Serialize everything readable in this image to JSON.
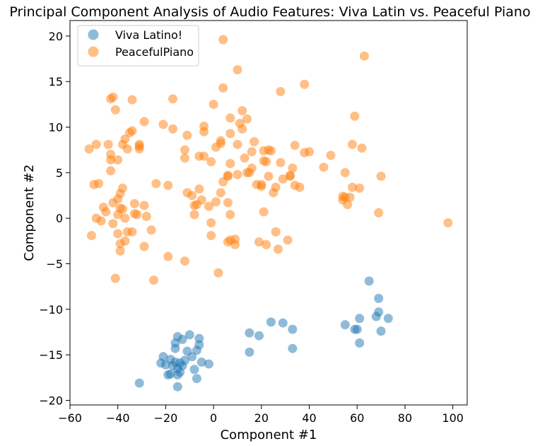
{
  "chart_data": {
    "type": "scatter",
    "title": "Principal Component Analysis of Audio Features: Viva Latin vs. Peaceful Piano",
    "xlabel": "Component #1",
    "ylabel": "Component #2",
    "xlim": [
      -60,
      106
    ],
    "ylim": [
      -20.5,
      21.7
    ],
    "xticks": [
      -60,
      -40,
      -20,
      0,
      20,
      40,
      60,
      80,
      100
    ],
    "yticks": [
      -20,
      -15,
      -10,
      -5,
      0,
      5,
      10,
      15,
      20
    ],
    "grid": false,
    "legend_position": "top-left",
    "series": [
      {
        "name": "Viva Latino!",
        "color": "#1f77b4",
        "points": [
          [
            -31,
            -18.1
          ],
          [
            -22,
            -15.9
          ],
          [
            -21,
            -15.2
          ],
          [
            -20,
            -16.1
          ],
          [
            -19,
            -17.2
          ],
          [
            -18,
            -17.1
          ],
          [
            -18,
            -15.5
          ],
          [
            -17,
            -16.2
          ],
          [
            -16,
            -15.8
          ],
          [
            -16,
            -14.3
          ],
          [
            -16,
            -13.7
          ],
          [
            -15,
            -13.0
          ],
          [
            -15,
            -16.5
          ],
          [
            -15,
            -17.2
          ],
          [
            -14,
            -16.9
          ],
          [
            -14,
            -15.9
          ],
          [
            -13,
            -16.2
          ],
          [
            -13,
            -13.3
          ],
          [
            -12,
            -15.6
          ],
          [
            -11,
            -14.6
          ],
          [
            -10,
            -12.8
          ],
          [
            -9,
            -15.2
          ],
          [
            -8,
            -16.6
          ],
          [
            -7,
            -17.6
          ],
          [
            -7,
            -14.5
          ],
          [
            -6,
            -13.9
          ],
          [
            -6,
            -13.2
          ],
          [
            -5,
            -15.8
          ],
          [
            -2,
            -16.0
          ],
          [
            -15,
            -18.5
          ],
          [
            15,
            -14.7
          ],
          [
            15,
            -12.6
          ],
          [
            19,
            -12.9
          ],
          [
            24,
            -11.4
          ],
          [
            29,
            -11.5
          ],
          [
            33,
            -12.2
          ],
          [
            33,
            -14.3
          ],
          [
            55,
            -11.7
          ],
          [
            59,
            -12.2
          ],
          [
            60,
            -12.2
          ],
          [
            61,
            -11.0
          ],
          [
            61,
            -13.7
          ],
          [
            65,
            -6.9
          ],
          [
            68,
            -10.8
          ],
          [
            69,
            -8.8
          ],
          [
            69,
            -10.3
          ],
          [
            70,
            -12.4
          ],
          [
            73,
            -11.0
          ]
        ]
      },
      {
        "name": "PeacefulPiano",
        "color": "#ff7f0e",
        "points": [
          [
            -52,
            7.6
          ],
          [
            -51,
            -1.9
          ],
          [
            -50,
            3.7
          ],
          [
            -49,
            0.0
          ],
          [
            -49,
            8.1
          ],
          [
            -48,
            3.8
          ],
          [
            -47,
            -0.3
          ],
          [
            -46,
            1.2
          ],
          [
            -45,
            0.7
          ],
          [
            -44,
            8.1
          ],
          [
            -43,
            6.4
          ],
          [
            -43,
            7.0
          ],
          [
            -43,
            5.2
          ],
          [
            -43,
            13.1
          ],
          [
            -42,
            13.3
          ],
          [
            -42,
            -0.6
          ],
          [
            -42,
            1.7
          ],
          [
            -41,
            -6.6
          ],
          [
            -41,
            11.9
          ],
          [
            -40,
            2.1
          ],
          [
            -40,
            6.4
          ],
          [
            -40,
            -1.7
          ],
          [
            -40,
            0.4
          ],
          [
            -39,
            2.7
          ],
          [
            -39,
            1.1
          ],
          [
            -39,
            -3.6
          ],
          [
            -39,
            -2.8
          ],
          [
            -38,
            3.3
          ],
          [
            -38,
            1.0
          ],
          [
            -38,
            8.1
          ],
          [
            -37,
            8.7
          ],
          [
            -37,
            -2.5
          ],
          [
            -37,
            0.0
          ],
          [
            -36,
            -1.5
          ],
          [
            -36,
            7.6
          ],
          [
            -35,
            9.4
          ],
          [
            -34,
            9.6
          ],
          [
            -34,
            13.0
          ],
          [
            -34,
            -1.5
          ],
          [
            -33,
            1.6
          ],
          [
            -33,
            0.5
          ],
          [
            -32,
            0.4
          ],
          [
            -31,
            7.6
          ],
          [
            -31,
            8.1
          ],
          [
            -31,
            7.9
          ],
          [
            -29,
            10.6
          ],
          [
            -29,
            1.4
          ],
          [
            -29,
            -3.1
          ],
          [
            -28,
            0.2
          ],
          [
            -26,
            -1.3
          ],
          [
            -25,
            -6.8
          ],
          [
            -24,
            3.8
          ],
          [
            -21,
            10.3
          ],
          [
            -19,
            3.6
          ],
          [
            -19,
            -4.2
          ],
          [
            -17,
            9.8
          ],
          [
            -17,
            13.1
          ],
          [
            -12,
            6.6
          ],
          [
            -12,
            7.5
          ],
          [
            -12,
            -4.7
          ],
          [
            -11,
            2.8
          ],
          [
            -11,
            9.1
          ],
          [
            -9,
            2.5
          ],
          [
            -8,
            1.4
          ],
          [
            -8,
            0.4
          ],
          [
            -7,
            1.5
          ],
          [
            -6,
            3.2
          ],
          [
            -6,
            6.8
          ],
          [
            -5,
            2.0
          ],
          [
            -4,
            9.5
          ],
          [
            -4,
            10.1
          ],
          [
            -4,
            6.8
          ],
          [
            -2,
            1.3
          ],
          [
            -1,
            -0.5
          ],
          [
            -1,
            -1.9
          ],
          [
            -1,
            6.2
          ],
          [
            0,
            12.5
          ],
          [
            1,
            1.8
          ],
          [
            1,
            7.8
          ],
          [
            2,
            -6.0
          ],
          [
            3,
            8.2
          ],
          [
            3,
            8.5
          ],
          [
            3,
            2.8
          ],
          [
            4,
            4.0
          ],
          [
            4,
            14.3
          ],
          [
            4,
            19.6
          ],
          [
            6,
            1.7
          ],
          [
            6,
            -2.6
          ],
          [
            6,
            4.6
          ],
          [
            6,
            4.7
          ],
          [
            7,
            0.4
          ],
          [
            7,
            -2.4
          ],
          [
            7,
            9.3
          ],
          [
            7,
            6.0
          ],
          [
            7,
            11.0
          ],
          [
            9,
            -2.3
          ],
          [
            9,
            -2.9
          ],
          [
            10,
            16.3
          ],
          [
            10,
            4.8
          ],
          [
            10,
            8.1
          ],
          [
            11,
            10.4
          ],
          [
            12,
            11.8
          ],
          [
            12,
            9.8
          ],
          [
            13,
            6.6
          ],
          [
            14,
            10.9
          ],
          [
            14,
            5.0
          ],
          [
            15,
            5.0
          ],
          [
            16,
            7.3
          ],
          [
            16,
            5.5
          ],
          [
            17,
            8.4
          ],
          [
            18,
            3.7
          ],
          [
            19,
            -2.6
          ],
          [
            20,
            3.5
          ],
          [
            20,
            3.7
          ],
          [
            21,
            6.3
          ],
          [
            21,
            7.4
          ],
          [
            21,
            0.7
          ],
          [
            22,
            6.2
          ],
          [
            22,
            -2.9
          ],
          [
            23,
            4.6
          ],
          [
            23,
            7.5
          ],
          [
            24,
            7.4
          ],
          [
            25,
            2.8
          ],
          [
            26,
            3.4
          ],
          [
            26,
            -1.5
          ],
          [
            27,
            -3.4
          ],
          [
            28,
            13.9
          ],
          [
            28,
            6.1
          ],
          [
            29,
            4.3
          ],
          [
            31,
            -2.4
          ],
          [
            32,
            4.6
          ],
          [
            32,
            4.7
          ],
          [
            33,
            5.5
          ],
          [
            34,
            3.6
          ],
          [
            34,
            8.0
          ],
          [
            36,
            3.4
          ],
          [
            38,
            7.2
          ],
          [
            38,
            14.7
          ],
          [
            40,
            7.3
          ],
          [
            46,
            5.6
          ],
          [
            49,
            6.9
          ],
          [
            54,
            2.4
          ],
          [
            54,
            2.0
          ],
          [
            55,
            5.0
          ],
          [
            55,
            2.3
          ],
          [
            56,
            1.5
          ],
          [
            57,
            2.3
          ],
          [
            58,
            8.1
          ],
          [
            58,
            3.4
          ],
          [
            59,
            11.2
          ],
          [
            61,
            3.3
          ],
          [
            62,
            7.7
          ],
          [
            63,
            17.8
          ],
          [
            69,
            0.6
          ],
          [
            70,
            4.6
          ],
          [
            98,
            -0.5
          ]
        ]
      }
    ]
  }
}
